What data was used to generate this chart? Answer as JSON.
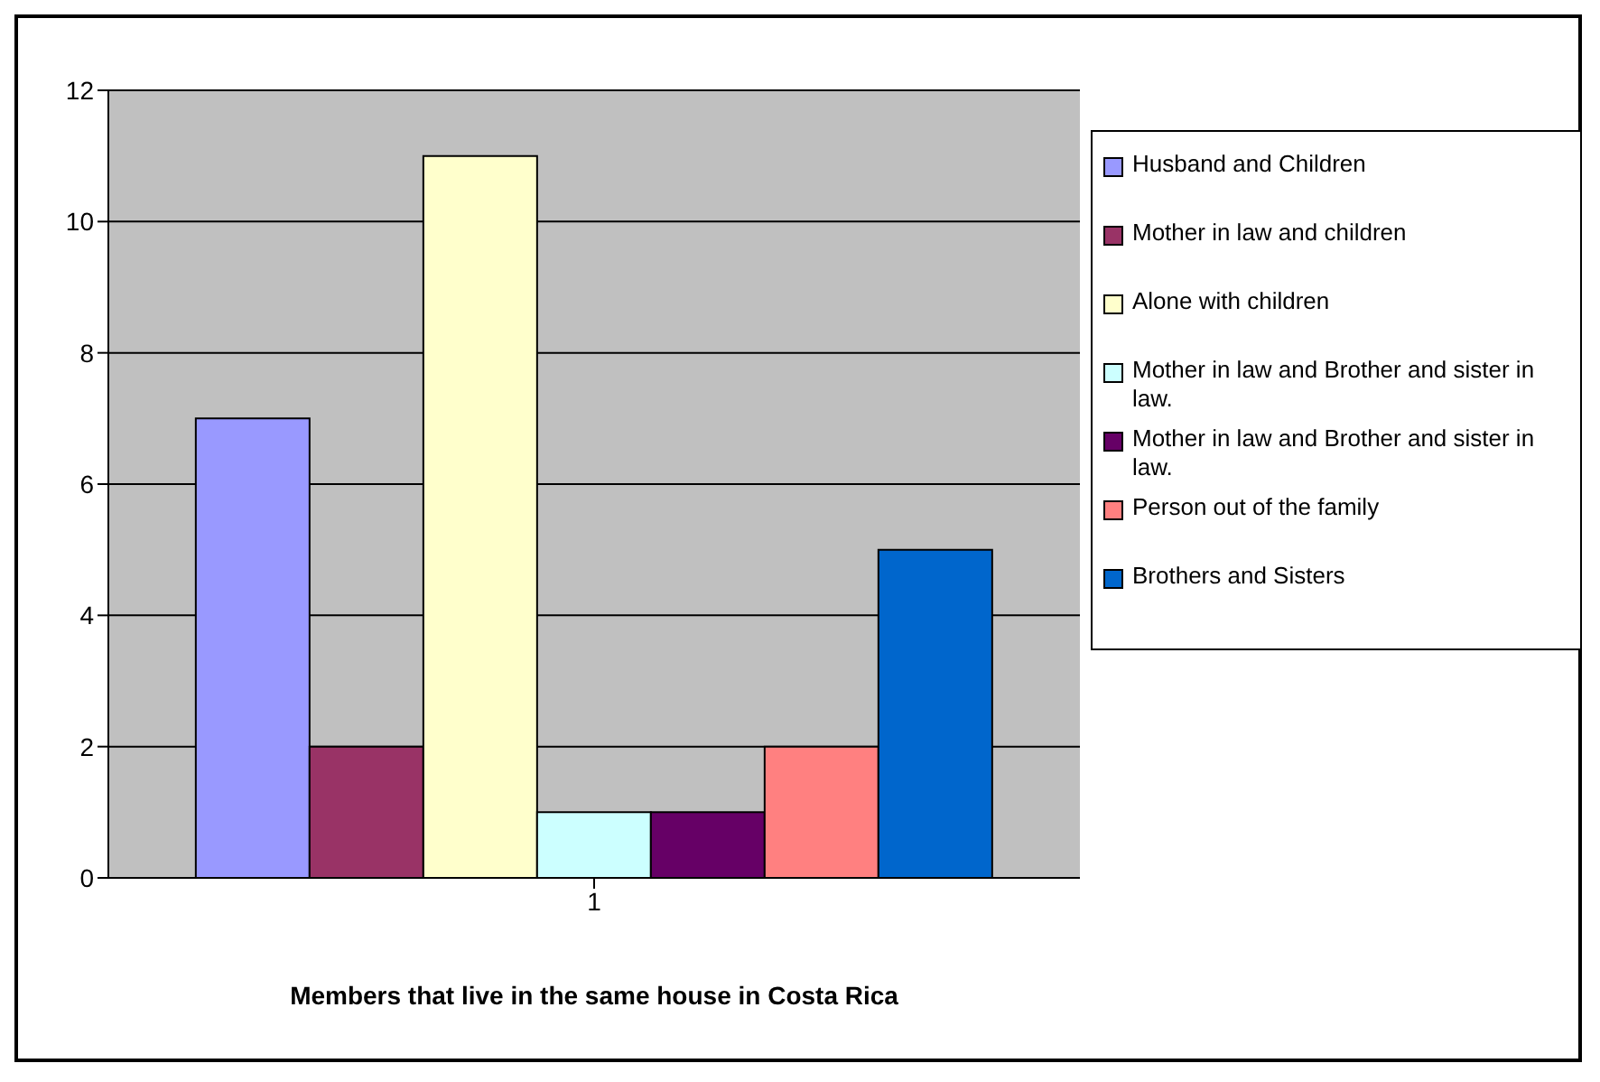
{
  "chart_data": {
    "type": "bar",
    "xlabel": "Members that live in the same house in Costa Rica",
    "categories": [
      "1"
    ],
    "series": [
      {
        "name": "Husband and Children",
        "color": "#9999ff",
        "values": [
          7
        ]
      },
      {
        "name": "Mother in law and children",
        "color": "#993366",
        "values": [
          2
        ]
      },
      {
        "name": "Alone with children",
        "color": "#ffffcc",
        "values": [
          11
        ]
      },
      {
        "name": "Mother in law and Brother and sister in law.",
        "color": "#ccffff",
        "values": [
          1
        ]
      },
      {
        "name": "Mother in law and Brother and sister in law.",
        "color": "#660066",
        "values": [
          1
        ]
      },
      {
        "name": "Person out of the family",
        "color": "#ff8080",
        "values": [
          2
        ]
      },
      {
        "name": "Brothers and Sisters",
        "color": "#0066cc",
        "values": [
          5
        ]
      }
    ],
    "ylim": [
      0,
      12
    ],
    "yticks": [
      0,
      2,
      4,
      6,
      8,
      10,
      12
    ],
    "grid": "y",
    "legend": "right"
  }
}
